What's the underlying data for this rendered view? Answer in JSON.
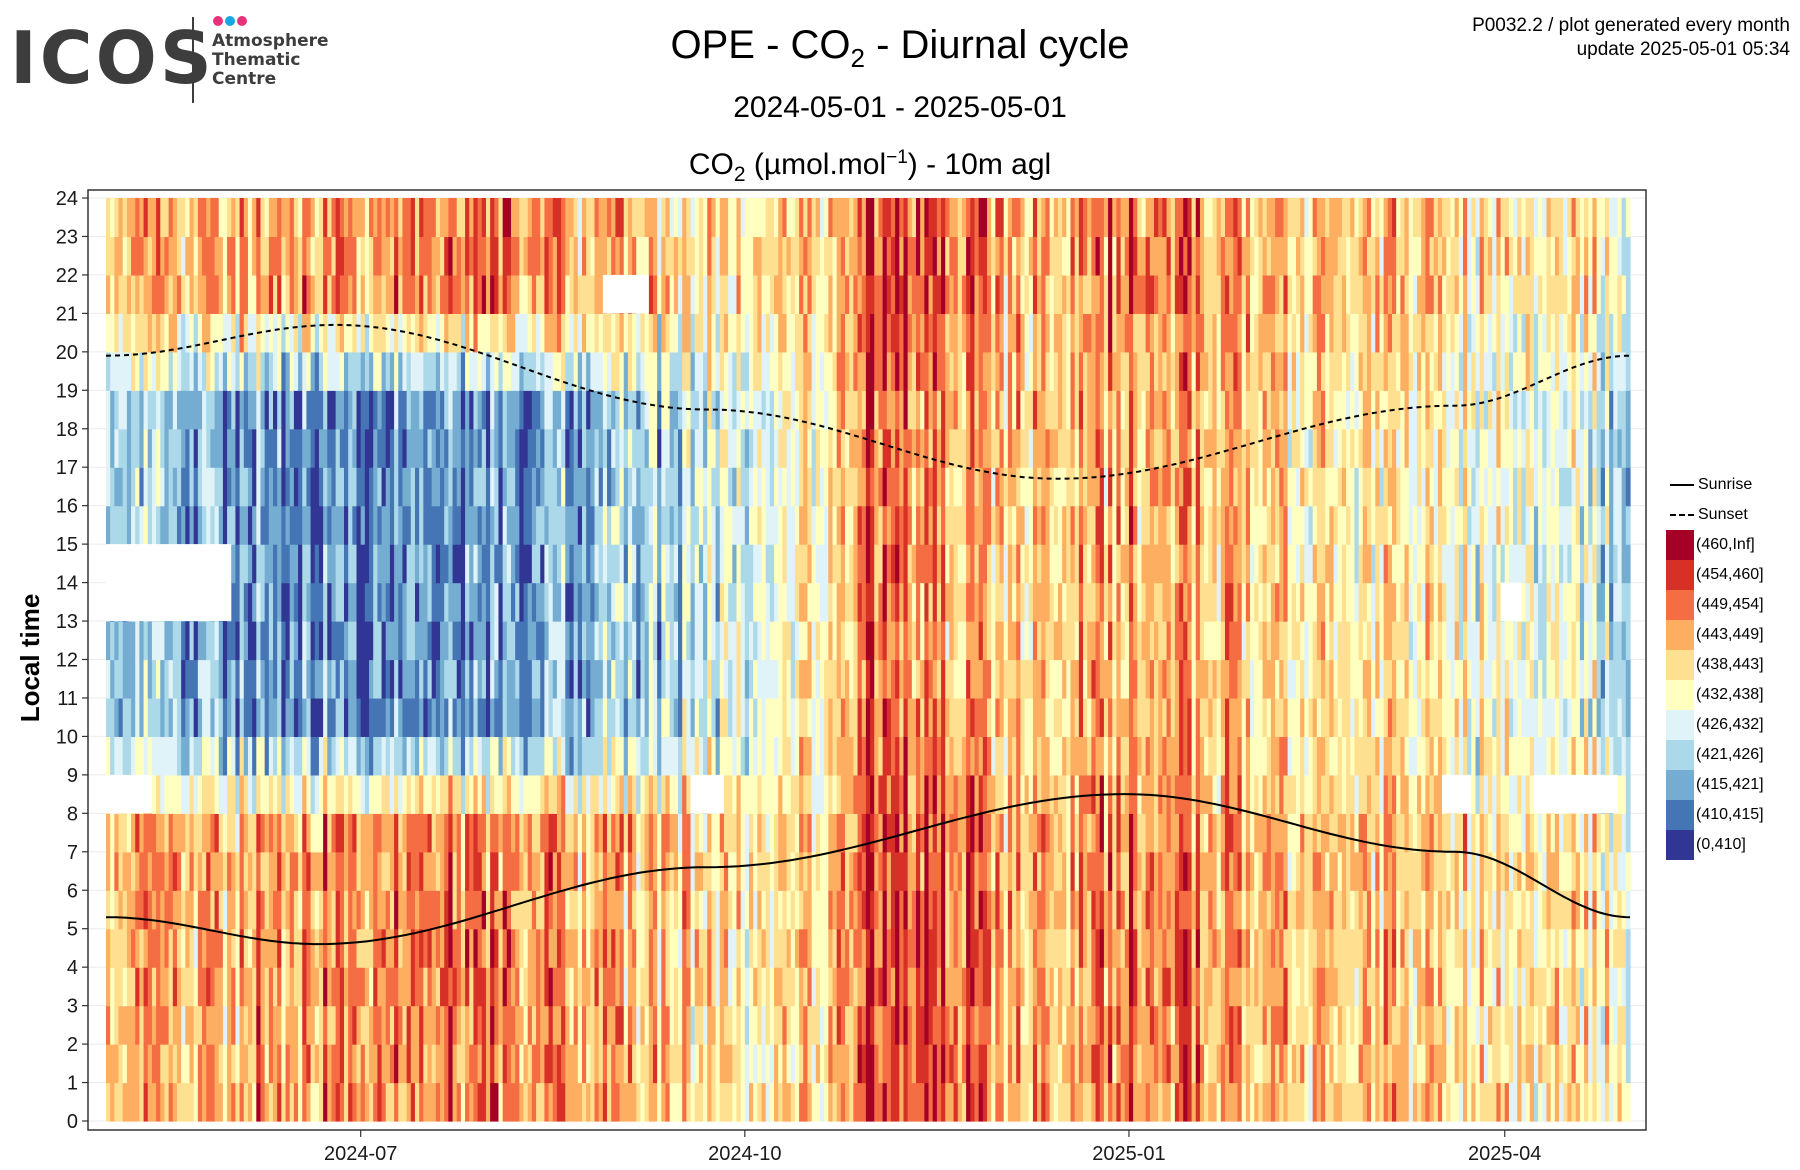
{
  "logo": {
    "wordmark": "ICOS",
    "subtitle_lines": [
      "Atmosphere",
      "Thematic",
      "Centre"
    ],
    "dot_colors": [
      "#e8317a",
      "#1aa6e4",
      "#e8317a"
    ]
  },
  "header": {
    "title_prefix": "OPE - CO",
    "title_sub": "2",
    "title_suffix": " - Diurnal cycle",
    "date_range": "2024-05-01 - 2025-05-01",
    "meta_line1": "P0032.2 / plot generated every month",
    "meta_line2": "update  2025-05-01 05:34"
  },
  "units_label": {
    "part1": "CO",
    "sub": "2",
    "part2": " (µmol.mol",
    "sup": "−1",
    "part3": ") - 10m agl"
  },
  "chart_data": {
    "type": "heatmap",
    "ylabel": "Local time",
    "x_start": "2024-05-01",
    "x_end": "2025-05-01",
    "x_ticks": [
      "2024-07",
      "2024-10",
      "2025-01",
      "2025-04"
    ],
    "x_tick_dates": [
      "2024-07-01",
      "2024-10-01",
      "2025-01-01",
      "2025-04-01"
    ],
    "y_ticks": [
      0,
      1,
      2,
      3,
      4,
      5,
      6,
      7,
      8,
      9,
      10,
      11,
      12,
      13,
      14,
      15,
      16,
      17,
      18,
      19,
      20,
      21,
      22,
      23,
      24
    ],
    "ylim": [
      0,
      24
    ],
    "lines": [
      {
        "name": "Sunrise",
        "style": "solid",
        "dates": [
          "2024-05-01",
          "2024-06-21",
          "2024-09-22",
          "2024-12-31",
          "2025-03-20",
          "2025-05-01"
        ],
        "hours": [
          5.3,
          4.6,
          6.6,
          8.5,
          7.0,
          5.3
        ]
      },
      {
        "name": "Sunset",
        "style": "dashed",
        "dates": [
          "2024-05-01",
          "2024-06-25",
          "2024-09-22",
          "2024-12-15",
          "2025-03-20",
          "2025-05-01"
        ],
        "hours": [
          19.9,
          20.7,
          18.5,
          16.7,
          18.6,
          19.9
        ]
      }
    ],
    "legend": [
      {
        "label": "(460,Inf]",
        "color": "#a50026"
      },
      {
        "label": "(454,460]",
        "color": "#d73027"
      },
      {
        "label": "(449,454]",
        "color": "#f46d43"
      },
      {
        "label": "(443,449]",
        "color": "#fdae61"
      },
      {
        "label": "(438,443]",
        "color": "#fee090"
      },
      {
        "label": "(432,438]",
        "color": "#ffffbf"
      },
      {
        "label": "(426,432]",
        "color": "#e0f3f8"
      },
      {
        "label": "(421,426]",
        "color": "#abd9e9"
      },
      {
        "label": "(415,421]",
        "color": "#74add1"
      },
      {
        "label": "(410,415]",
        "color": "#4575b4"
      },
      {
        "label": "(0,410]",
        "color": "#313695"
      }
    ],
    "class_index_scale": "0 = (0,410] ... 10 = (460,Inf]",
    "monthly_profile_dates": [
      "2024-05-01",
      "2024-06-01",
      "2024-07-01",
      "2024-08-01",
      "2024-09-01",
      "2024-10-01",
      "2024-10-15",
      "2024-11-01",
      "2024-11-20",
      "2024-12-01",
      "2024-12-20",
      "2025-01-01",
      "2025-01-20",
      "2025-02-01",
      "2025-03-01",
      "2025-04-01",
      "2025-05-01"
    ],
    "monthly_profile_night": [
      6,
      7,
      7.5,
      7.5,
      6.5,
      5.5,
      6,
      8.5,
      8.5,
      6.5,
      7,
      8,
      7.5,
      6.5,
      6.5,
      5.5,
      5.5
    ],
    "monthly_profile_day": [
      2.5,
      2,
      1.5,
      1.5,
      2.5,
      4,
      5,
      8,
      7,
      6,
      6.5,
      7,
      7,
      6,
      5.5,
      4.5,
      3.5
    ],
    "missing_blocks": [
      {
        "start": "2024-05-01",
        "end": "2024-05-31",
        "hours": [
          13,
          15
        ]
      },
      {
        "start": "2024-05-01",
        "end": "2024-05-12",
        "hours": [
          8,
          9
        ]
      },
      {
        "start": "2024-08-28",
        "end": "2024-09-08",
        "hours": [
          21,
          22
        ]
      },
      {
        "start": "2024-09-18",
        "end": "2024-09-26",
        "hours": [
          8,
          9
        ]
      },
      {
        "start": "2025-03-17",
        "end": "2025-03-24",
        "hours": [
          8,
          9
        ]
      },
      {
        "start": "2025-04-08",
        "end": "2025-04-28",
        "hours": [
          8,
          9
        ]
      },
      {
        "start": "2025-03-31",
        "end": "2025-04-05",
        "hours": [
          13,
          14
        ]
      }
    ]
  }
}
